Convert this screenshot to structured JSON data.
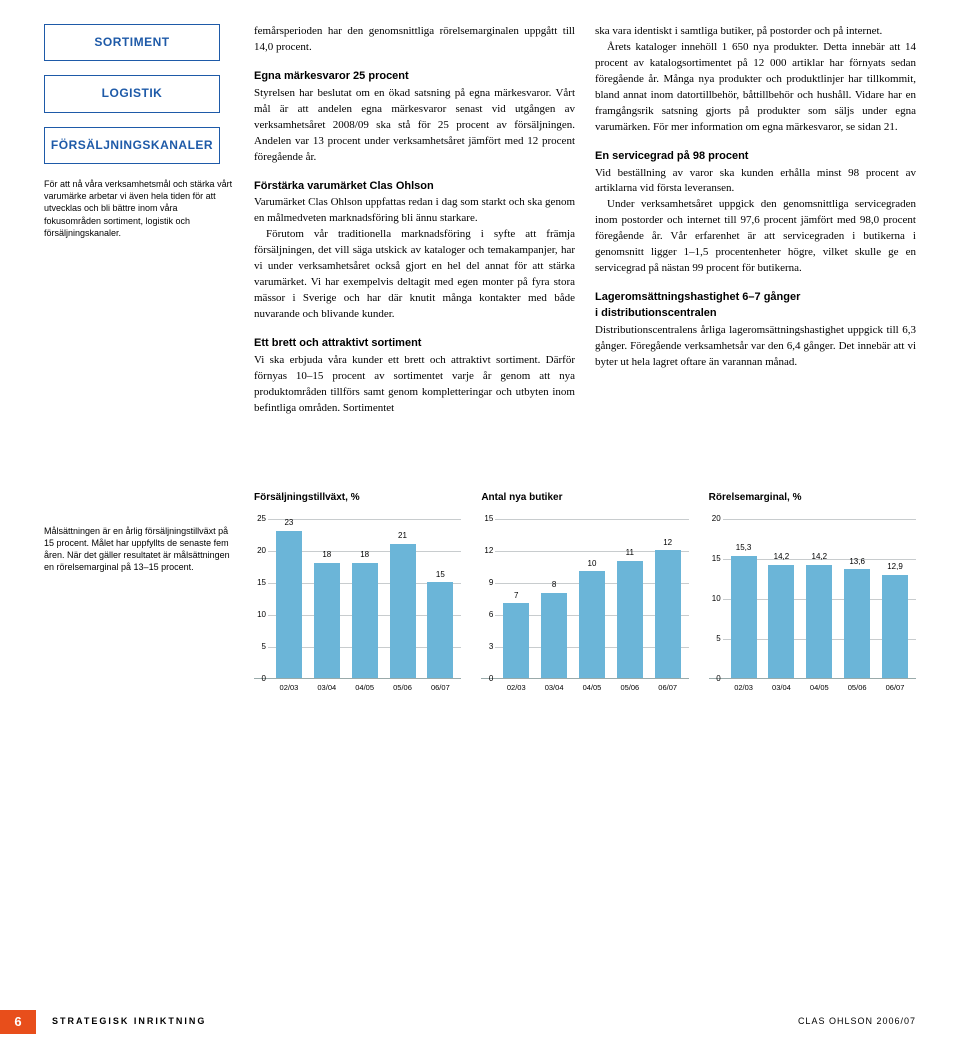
{
  "focus_boxes": {
    "a": "SORTIMENT",
    "b": "LOGISTIK",
    "c": "FÖRSÄLJNINGSKANALER",
    "caption": "För att nå våra verksamhetsmål och stärka vårt varumärke arbetar vi även hela tiden för att utvecklas och bli bättre inom våra fokusområden sortiment, logistik och försäljningskanaler."
  },
  "col_mid": {
    "intro": "femårsperioden har den genomsnittliga rörelsemarginalen uppgått till 14,0 procent.",
    "h1": "Egna märkesvaror 25 procent",
    "p1": "Styrelsen har beslutat om en ökad satsning på egna märkesvaror. Vårt mål är att andelen egna märkesvaror senast vid utgången av verksamhetsåret 2008/09 ska stå för 25 procent av försäljningen. Andelen var 13 procent under verksamhetsåret jämfört med 12 procent föregående år.",
    "h2": "Förstärka varumärket Clas Ohlson",
    "p2a": "Varumärket Clas Ohlson uppfattas redan i dag som starkt och ska genom en målmedveten marknadsföring bli ännu starkare.",
    "p2b": "Förutom vår traditionella marknadsföring i syfte att främja försäljningen, det vill säga utskick av kataloger och temakampanjer, har vi under verksamhetsåret också gjort en hel del annat för att stärka varumärket. Vi har exempelvis deltagit med egen monter på fyra stora mässor i Sverige och har där knutit många kontakter med både nuvarande och blivande kunder.",
    "h3": "Ett brett och attraktivt sortiment",
    "p3": "Vi ska erbjuda våra kunder ett brett och attraktivt sortiment. Därför förnyas 10–15 procent av sortimentet varje år genom att nya produktområden tillförs samt genom kompletteringar och utbyten inom befintliga områden. Sortimentet"
  },
  "col_right": {
    "p0a": "ska vara identiskt i samtliga butiker, på postorder och på internet.",
    "p0b": "Årets kataloger innehöll 1 650 nya produkter. Detta innebär att 14 procent av katalogsortimentet på 12 000 artiklar har förnyats sedan föregående år. Många nya produkter och produktlinjer har tillkommit, bland annat inom datortillbehör, båttillbehör och hushåll. Vidare har en framgångsrik satsning gjorts på produkter som säljs under egna varumärken. För mer information om egna märkesvaror, se sidan 21.",
    "h1": "En servicegrad på 98 procent",
    "p1a": "Vid beställning av varor ska kunden erhålla minst 98 procent av artiklarna vid första leveransen.",
    "p1b": "Under verksamhetsåret uppgick den genomsnittliga servicegraden inom postorder och internet till 97,6 procent jämfört med 98,0 procent föregående år. Vår erfarenhet är att servicegraden i butikerna i genomsnitt ligger 1–1,5 procentenheter högre, vilket skulle ge en servicegrad på nästan 99 procent för butikerna.",
    "h2": "Lageromsättningshastighet 6–7 gånger i distributionscentralen",
    "p2": "Distributionscentralens årliga lageromsättningshastighet uppgick till 6,3 gånger. Föregående verksamhetsår var den 6,4 gånger. Det innebär att vi byter ut hela lagret oftare än varannan månad."
  },
  "charts_note": "Målsättningen är en årlig försäljningstillväxt på 15 procent. Målet har uppfyllts de senaste fem åren. När det gäller resultatet är målsättningen en rörelsemarginal på 13–15 procent.",
  "chart1": {
    "title": "Försäljningstillväxt, %",
    "ymax": 25,
    "ystep": 5,
    "categories": [
      "02/03",
      "03/04",
      "04/05",
      "05/06",
      "06/07"
    ],
    "values": [
      23,
      18,
      18,
      21,
      15
    ],
    "value_labels": [
      "23",
      "18",
      "18",
      "21",
      "15"
    ],
    "bar_color": "#6bb5d8"
  },
  "chart2": {
    "title": "Antal nya butiker",
    "ymax": 15,
    "ystep": 3,
    "categories": [
      "02/03",
      "03/04",
      "04/05",
      "05/06",
      "06/07"
    ],
    "values": [
      7,
      8,
      10,
      11,
      12
    ],
    "value_labels": [
      "7",
      "8",
      "10",
      "11",
      "12"
    ],
    "bar_color": "#6bb5d8"
  },
  "chart3": {
    "title": "Rörelsemarginal, %",
    "ymax": 20,
    "ystep": 5,
    "categories": [
      "02/03",
      "03/04",
      "04/05",
      "05/06",
      "06/07"
    ],
    "values": [
      15.3,
      14.2,
      14.2,
      13.6,
      12.9
    ],
    "value_labels": [
      "15,3",
      "14,2",
      "14,2",
      "13,6",
      "12,9"
    ],
    "bar_color": "#6bb5d8"
  },
  "footer": {
    "page": "6",
    "section": "STRATEGISK INRIKTNING",
    "doc": "CLAS OHLSON 2006/07"
  }
}
